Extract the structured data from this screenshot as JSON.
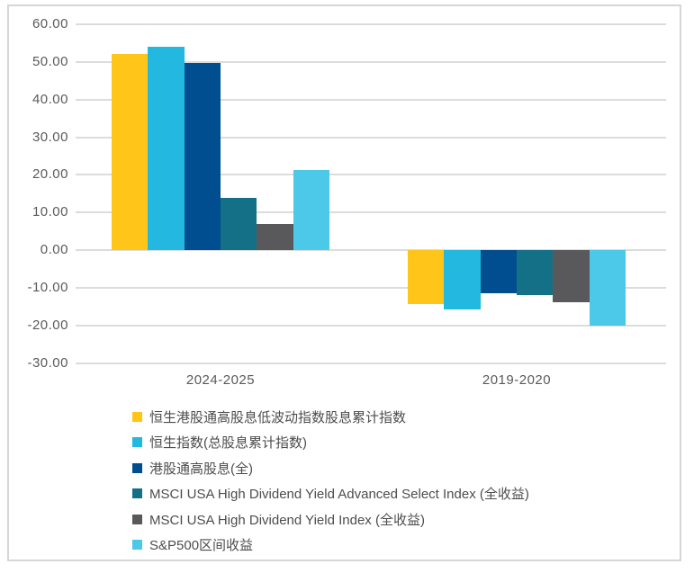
{
  "chart_data": {
    "type": "bar",
    "title": "",
    "categories": [
      "2024-2025",
      "2019-2020"
    ],
    "series": [
      {
        "name": "恒生港股通高股息低波动指数股息累计指数",
        "color": "#FFC619",
        "values": [
          52.0,
          -14.3
        ]
      },
      {
        "name": "恒生指数(总股息累计指数)",
        "color": "#22B8E0",
        "values": [
          54.0,
          -15.8
        ]
      },
      {
        "name": "港股通高股息(全)",
        "color": "#004E90",
        "values": [
          49.8,
          -11.4
        ]
      },
      {
        "name": "MSCI USA High Dividend Yield Advanced Select Index (全收益)",
        "color": "#147087",
        "values": [
          13.9,
          -11.9
        ]
      },
      {
        "name": "MSCI USA High Dividend Yield Index (全收益)",
        "color": "#59595B",
        "values": [
          7.0,
          -13.8
        ]
      },
      {
        "name": "S&P500区间收益",
        "color": "#4CC8E8",
        "values": [
          21.3,
          -20.0
        ]
      }
    ],
    "ylim": [
      -30,
      60
    ],
    "ytick_step": 10,
    "ytick_labels": [
      "60.00",
      "50.00",
      "40.00",
      "30.00",
      "20.00",
      "10.00",
      "0.00",
      "-10.00",
      "-20.00",
      "-30.00"
    ],
    "grid": true,
    "legend_position": "bottom"
  },
  "colors": {
    "background": "#FFFFFF",
    "frame_border": "#D6D6D6",
    "gridline": "#DCDCDC",
    "axis_text": "#5A5A5A",
    "legend_text": "#4D4D4D"
  }
}
